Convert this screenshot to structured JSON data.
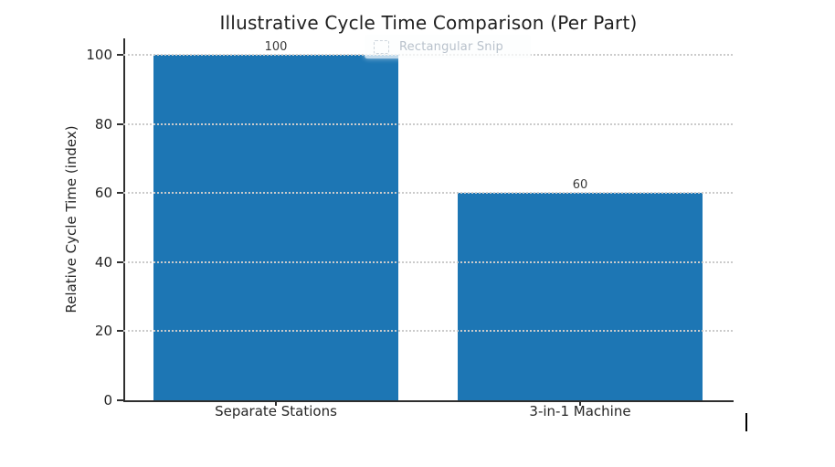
{
  "chart_data": {
    "type": "bar",
    "title": "Illustrative Cycle Time Comparison (Per Part)",
    "categories": [
      "Separate Stations",
      "3-in-1 Machine"
    ],
    "values": [
      100,
      60
    ],
    "bar_value_labels": [
      "100",
      "60"
    ],
    "xlabel": "",
    "ylabel": "Relative Cycle Time (index)",
    "ylim": [
      0,
      100
    ],
    "yticks": [
      0,
      20,
      40,
      60,
      80,
      100
    ],
    "grid": "horizontal dotted, drawn over bars",
    "legend": "none",
    "bar_color": "#1d76b4",
    "axis_color": "#2f2f2f",
    "gridline_color": "#cbcbcb"
  },
  "overlay": {
    "snip_tooltip_text": "Rectangular Snip"
  }
}
